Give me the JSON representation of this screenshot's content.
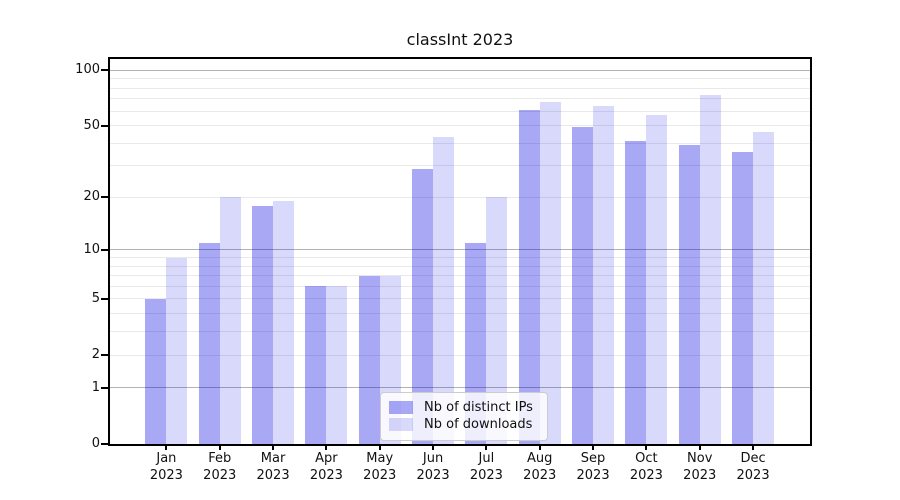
{
  "title": "classInt 2023",
  "background_color": "#ffffff",
  "chart_data": {
    "type": "bar",
    "title": "classInt 2023",
    "y_scale": "log1p",
    "ylim": [
      0,
      115
    ],
    "grid": "horizontal",
    "legend_position": "lower-center",
    "months": [
      "Jan",
      "Feb",
      "Mar",
      "Apr",
      "May",
      "Jun",
      "Jul",
      "Aug",
      "Sep",
      "Oct",
      "Nov",
      "Dec"
    ],
    "year_label": "2023",
    "categories": [
      "Jan 2023",
      "Feb 2023",
      "Mar 2023",
      "Apr 2023",
      "May 2023",
      "Jun 2023",
      "Jul 2023",
      "Aug 2023",
      "Sep 2023",
      "Oct 2023",
      "Nov 2023",
      "Dec 2023"
    ],
    "series": [
      {
        "name": "Nb of distinct IPs",
        "color": "#a8a8f4",
        "values": [
          5,
          11,
          18,
          6,
          7,
          29,
          11,
          61,
          49,
          41,
          39,
          36
        ]
      },
      {
        "name": "Nb of downloads",
        "color": "#d9d9fa",
        "values": [
          9,
          20,
          19,
          6,
          7,
          43,
          20,
          67,
          64,
          57,
          73,
          46
        ]
      }
    ],
    "y_ticks": [
      0,
      1,
      2,
      5,
      10,
      20,
      50,
      100
    ],
    "major_gridlines": [
      1,
      10,
      100
    ],
    "minor_gridlines": [
      2,
      3,
      4,
      5,
      6,
      7,
      8,
      9,
      20,
      30,
      40,
      50,
      60,
      70,
      80,
      90
    ],
    "gridline_major_color": "#b2b2b2",
    "gridline_minor_color": "#e9e9e9",
    "axis_color": "#000000"
  }
}
